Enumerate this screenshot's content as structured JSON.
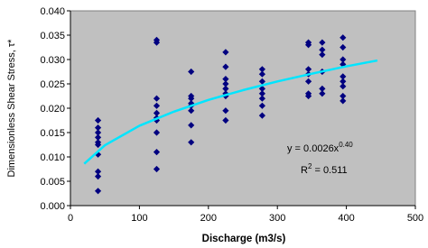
{
  "chart_data": {
    "type": "scatter",
    "x_label": "Discharge (m3/s)",
    "y_label": "Dimensionless Shear Stress, τ*",
    "xlim": [
      0,
      500
    ],
    "xticks": [
      0,
      100,
      200,
      300,
      400,
      500
    ],
    "ylim": [
      0,
      0.04
    ],
    "yticks": [
      {
        "value": 0,
        "label": "0.000"
      },
      {
        "value": 0.005,
        "label": "0.005"
      },
      {
        "value": 0.01,
        "label": "0.010"
      },
      {
        "value": 0.015,
        "label": "0.015"
      },
      {
        "value": 0.02,
        "label": "0.020"
      },
      {
        "value": 0.025,
        "label": "0.025"
      },
      {
        "value": 0.03,
        "label": "0.030"
      },
      {
        "value": 0.035,
        "label": "0.035"
      },
      {
        "value": 0.04,
        "label": "0.040"
      }
    ],
    "grid": false,
    "background": "#c0c0c0",
    "series": [
      {
        "color": "#000080",
        "x": [
          40,
          40,
          40,
          40,
          40,
          40,
          40,
          40,
          40,
          40,
          125,
          125,
          125,
          125,
          125,
          125,
          125,
          125,
          125,
          125,
          175,
          175,
          175,
          175,
          175,
          175,
          175,
          175,
          225,
          225,
          225,
          225,
          225,
          225,
          225,
          225,
          225,
          278,
          278,
          278,
          278,
          278,
          278,
          278,
          278,
          345,
          345,
          345,
          345,
          345,
          345,
          345,
          365,
          365,
          365,
          365,
          365,
          365,
          395,
          395,
          395,
          395,
          395,
          395,
          395,
          395,
          395
        ],
        "values": [
          0.0175,
          0.016,
          0.015,
          0.014,
          0.013,
          0.0125,
          0.0105,
          0.007,
          0.006,
          0.003,
          0.034,
          0.0335,
          0.022,
          0.0205,
          0.019,
          0.018,
          0.0175,
          0.015,
          0.011,
          0.0075,
          0.0275,
          0.0225,
          0.022,
          0.021,
          0.0205,
          0.0195,
          0.0165,
          0.013,
          0.0315,
          0.0285,
          0.026,
          0.025,
          0.024,
          0.023,
          0.0225,
          0.0195,
          0.0175,
          0.028,
          0.027,
          0.0255,
          0.024,
          0.023,
          0.022,
          0.0205,
          0.0185,
          0.0335,
          0.033,
          0.028,
          0.027,
          0.0255,
          0.023,
          0.0225,
          0.0335,
          0.032,
          0.031,
          0.0275,
          0.024,
          0.023,
          0.0345,
          0.0325,
          0.03,
          0.029,
          0.0265,
          0.0255,
          0.0245,
          0.0225,
          0.0215
        ]
      }
    ],
    "trendline": {
      "color": "#00e5ff",
      "x": [
        20,
        50,
        100,
        150,
        200,
        250,
        300,
        350,
        400,
        445
      ],
      "values": [
        0.0086,
        0.0124,
        0.0164,
        0.0193,
        0.0217,
        0.0237,
        0.0255,
        0.0271,
        0.0286,
        0.0298
      ]
    },
    "equation": {
      "base": "y = 0.0026x",
      "exponent": "0.40"
    },
    "r_squared": {
      "base": "R",
      "exponent": "2",
      "rest": " = 0.511"
    }
  }
}
